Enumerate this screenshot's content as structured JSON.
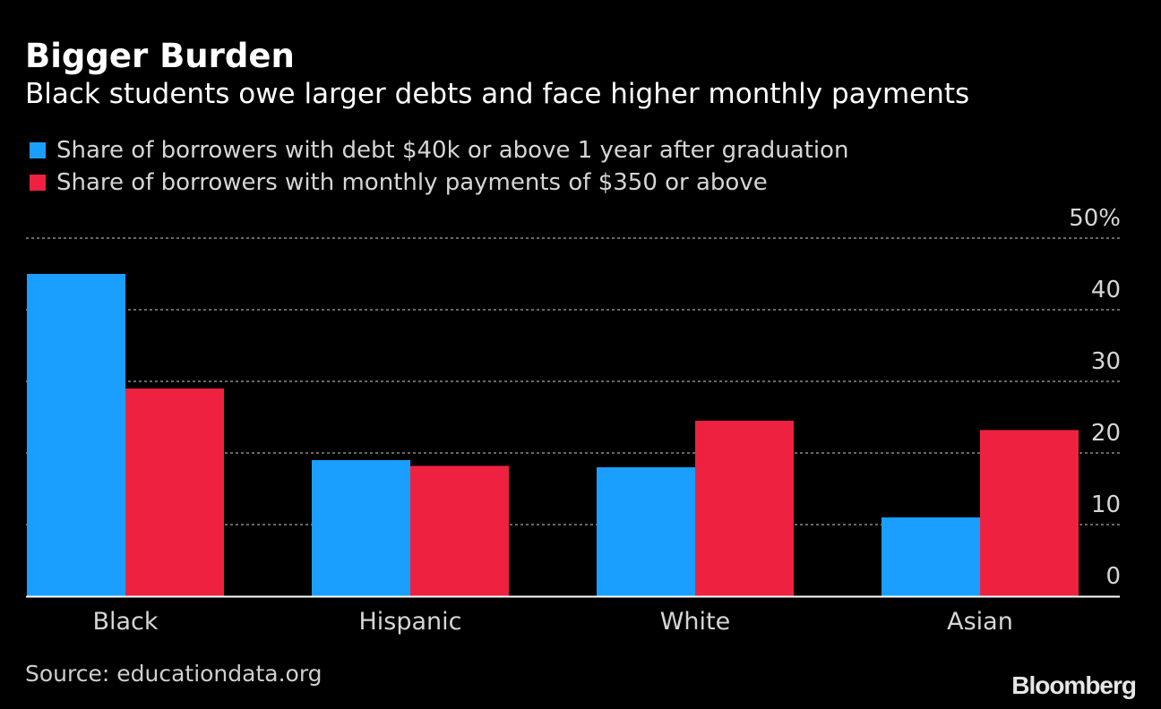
{
  "chart_data": {
    "type": "bar",
    "title": "Bigger Burden",
    "subtitle": "Black students owe larger debts and face higher monthly payments",
    "categories": [
      "Black",
      "Hispanic",
      "White",
      "Asian"
    ],
    "series": [
      {
        "name": "Share of borrowers with debt $40k or above 1 year after graduation",
        "color": "#1a9fff",
        "values": [
          45,
          19,
          18,
          11
        ]
      },
      {
        "name": "Share of borrowers with monthly payments of $350 or above",
        "color": "#ee2240",
        "values": [
          29,
          18.2,
          24.5,
          23.2
        ]
      }
    ],
    "yticks": [
      "0",
      "10",
      "20",
      "30",
      "40",
      "50%"
    ],
    "ylim": [
      0,
      50
    ],
    "grid": true,
    "legend": "top-left",
    "xlabel": "",
    "ylabel": ""
  },
  "source": "Source: educationdata.org",
  "logo": "Bloomberg",
  "colors": {
    "background": "#000000",
    "gridline": "#8a8a8a",
    "axis": "#ffffff"
  }
}
